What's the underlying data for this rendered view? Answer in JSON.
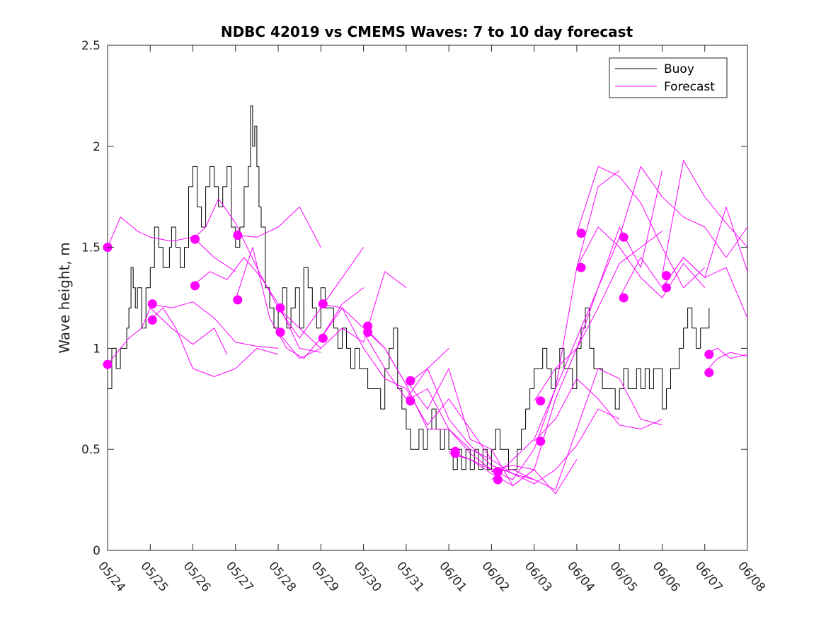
{
  "chart_data": {
    "type": "line",
    "title": "NDBC 42019 vs CMEMS Waves: 7 to 10 day forecast",
    "xlabel": "",
    "ylabel": "Wave height, m",
    "ylim": [
      0,
      2.5
    ],
    "yticks": [
      0,
      0.5,
      1,
      1.5,
      2,
      2.5
    ],
    "ytick_labels": [
      "0",
      "0.5",
      "1",
      "1.5",
      "2",
      "2.5"
    ],
    "xlim": [
      0,
      15
    ],
    "xticks": [
      0,
      1,
      2,
      3,
      4,
      5,
      6,
      7,
      8,
      9,
      10,
      11,
      12,
      13,
      14,
      15
    ],
    "xtick_labels": [
      "05/24",
      "05/25",
      "05/26",
      "05/27",
      "05/28",
      "05/29",
      "05/30",
      "05/31",
      "06/01",
      "06/02",
      "06/03",
      "06/04",
      "06/05",
      "06/06",
      "06/07",
      "06/08"
    ],
    "grid": false,
    "legend_position": "top-right",
    "colors": {
      "buoy": "#000000",
      "forecast": "#ff00ff"
    },
    "legend": [
      {
        "label": "Buoy",
        "color": "#000000"
      },
      {
        "label": "Forecast",
        "color": "#ff00ff"
      }
    ],
    "series": [
      {
        "name": "Buoy",
        "color": "#000000",
        "x": [
          0.0,
          0.1,
          0.2,
          0.3,
          0.45,
          0.5,
          0.55,
          0.6,
          0.65,
          0.7,
          0.8,
          0.9,
          1.0,
          1.1,
          1.2,
          1.3,
          1.45,
          1.5,
          1.6,
          1.7,
          1.8,
          1.9,
          2.0,
          2.1,
          2.2,
          2.3,
          2.4,
          2.5,
          2.6,
          2.7,
          2.8,
          2.9,
          3.0,
          3.1,
          3.2,
          3.3,
          3.35,
          3.4,
          3.45,
          3.5,
          3.55,
          3.6,
          3.7,
          3.8,
          3.9,
          4.0,
          4.1,
          4.2,
          4.3,
          4.4,
          4.5,
          4.6,
          4.7,
          4.8,
          4.9,
          5.0,
          5.1,
          5.2,
          5.3,
          5.4,
          5.5,
          5.6,
          5.7,
          5.8,
          5.9,
          6.0,
          6.1,
          6.2,
          6.3,
          6.4,
          6.5,
          6.6,
          6.7,
          6.8,
          6.9,
          7.0,
          7.1,
          7.2,
          7.3,
          7.4,
          7.5,
          7.6,
          7.7,
          7.8,
          7.9,
          8.0,
          8.1,
          8.2,
          8.3,
          8.4,
          8.5,
          8.6,
          8.7,
          8.8,
          8.9,
          9.0,
          9.1,
          9.2,
          9.3,
          9.4,
          9.5,
          9.6,
          9.7,
          9.8,
          9.9,
          10.0,
          10.1,
          10.2,
          10.3,
          10.4,
          10.5,
          10.6,
          10.7,
          10.8,
          10.9,
          11.0,
          11.1,
          11.2,
          11.3,
          11.4,
          11.5,
          11.6,
          11.7,
          11.8,
          11.9,
          12.0,
          12.1,
          12.2,
          12.3,
          12.4,
          12.5,
          12.6,
          12.7,
          12.8,
          12.9,
          13.0,
          13.1,
          13.2,
          13.3,
          13.4,
          13.5,
          13.6,
          13.7,
          13.8,
          13.9,
          14.0,
          14.1
        ],
        "values": [
          0.8,
          1.0,
          0.9,
          1.0,
          1.1,
          1.2,
          1.4,
          1.3,
          1.2,
          1.3,
          1.1,
          1.3,
          1.4,
          1.6,
          1.5,
          1.4,
          1.5,
          1.6,
          1.5,
          1.4,
          1.5,
          1.8,
          1.9,
          1.7,
          1.6,
          1.8,
          1.9,
          1.8,
          1.7,
          1.8,
          1.9,
          1.6,
          1.5,
          1.6,
          1.8,
          1.9,
          2.2,
          2.0,
          2.1,
          1.9,
          1.7,
          1.6,
          1.3,
          1.2,
          1.1,
          1.2,
          1.3,
          1.1,
          1.2,
          1.3,
          1.1,
          1.4,
          1.3,
          1.2,
          1.1,
          1.3,
          1.2,
          1.2,
          1.1,
          1.0,
          1.1,
          1.0,
          0.9,
          1.0,
          0.9,
          0.9,
          0.8,
          0.8,
          0.8,
          0.7,
          0.9,
          1.0,
          1.1,
          0.8,
          0.7,
          0.6,
          0.5,
          0.5,
          0.6,
          0.5,
          0.6,
          0.7,
          0.6,
          0.5,
          0.6,
          0.5,
          0.4,
          0.5,
          0.4,
          0.5,
          0.4,
          0.5,
          0.4,
          0.5,
          0.4,
          0.5,
          0.6,
          0.5,
          0.5,
          0.4,
          0.4,
          0.5,
          0.6,
          0.7,
          0.8,
          0.9,
          0.9,
          1.0,
          0.9,
          0.8,
          0.9,
          1.0,
          0.9,
          0.9,
          0.8,
          1.0,
          1.1,
          1.2,
          1.0,
          0.9,
          0.9,
          0.8,
          0.8,
          0.8,
          0.7,
          0.8,
          0.9,
          0.8,
          0.8,
          0.9,
          0.8,
          0.9,
          0.8,
          0.9,
          0.9,
          0.7,
          0.8,
          0.9,
          0.9,
          1.0,
          1.1,
          1.2,
          1.1,
          1.0,
          1.1,
          1.1,
          1.2
        ]
      },
      {
        "name": "Forecast",
        "color": "#ff00ff",
        "x": [
          0.0,
          0.3,
          0.7,
          1.0,
          1.5,
          2.0,
          2.5,
          3.0
        ],
        "values": [
          1.5,
          1.65,
          1.58,
          1.55,
          1.53,
          1.55,
          1.45,
          1.38
        ]
      },
      {
        "name": "",
        "color": "#ff00ff",
        "x": [
          0.0,
          0.3,
          0.5,
          0.8,
          1.0,
          1.5,
          2.0,
          2.5,
          2.8
        ],
        "values": [
          0.92,
          1.0,
          1.05,
          1.1,
          1.2,
          1.1,
          1.02,
          1.1,
          0.97
        ]
      },
      {
        "name": "",
        "color": "#ff00ff",
        "x": [
          1.0,
          1.5,
          2.0,
          2.5,
          3.0,
          3.5,
          4.0
        ],
        "values": [
          1.22,
          1.2,
          1.23,
          1.15,
          1.03,
          1.01,
          1.0
        ]
      },
      {
        "name": "",
        "color": "#ff00ff",
        "x": [
          1.0,
          1.3,
          1.6,
          2.0,
          2.5,
          3.0,
          3.5,
          4.0
        ],
        "values": [
          1.14,
          1.2,
          1.1,
          0.9,
          0.86,
          0.9,
          1.0,
          0.97
        ]
      },
      {
        "name": "",
        "color": "#ff00ff",
        "x": [
          2.0,
          2.3,
          2.6,
          3.0,
          3.5,
          4.0,
          4.5,
          5.0
        ],
        "values": [
          1.54,
          1.6,
          1.74,
          1.62,
          1.4,
          1.2,
          1.1,
          1.0
        ]
      },
      {
        "name": "",
        "color": "#ff00ff",
        "x": [
          2.0,
          2.4,
          2.8,
          3.2,
          3.6,
          4.0,
          4.5,
          5.0
        ],
        "values": [
          1.31,
          1.38,
          1.34,
          1.45,
          1.35,
          1.22,
          1.0,
          0.98
        ]
      },
      {
        "name": "",
        "color": "#ff00ff",
        "x": [
          3.0,
          3.5,
          4.0,
          4.5,
          5.0
        ],
        "values": [
          1.56,
          1.55,
          1.6,
          1.7,
          1.5
        ]
      },
      {
        "name": "",
        "color": "#ff00ff",
        "x": [
          3.0,
          3.4,
          3.8,
          4.2,
          4.6,
          5.0,
          5.5,
          6.0
        ],
        "values": [
          1.24,
          1.5,
          1.15,
          1.0,
          0.95,
          1.05,
          1.22,
          1.3
        ]
      },
      {
        "name": "",
        "color": "#ff00ff",
        "x": [
          4.0,
          4.5,
          5.0,
          5.5,
          6.0
        ],
        "values": [
          1.2,
          1.05,
          1.2,
          1.35,
          1.5
        ]
      },
      {
        "name": "",
        "color": "#ff00ff",
        "x": [
          4.0,
          4.5,
          5.0,
          5.5,
          6.0,
          6.5,
          7.0
        ],
        "values": [
          1.08,
          0.95,
          1.0,
          1.1,
          1.03,
          1.38,
          1.3
        ]
      },
      {
        "name": "",
        "color": "#ff00ff",
        "x": [
          5.0,
          5.5,
          6.0,
          6.5,
          7.0,
          7.5,
          8.0
        ],
        "values": [
          1.22,
          1.2,
          1.1,
          1.0,
          0.82,
          0.9,
          1.0
        ]
      },
      {
        "name": "",
        "color": "#ff00ff",
        "x": [
          5.0,
          5.5,
          6.0,
          6.5,
          7.0,
          7.5,
          8.0,
          8.5,
          9.0
        ],
        "values": [
          1.05,
          1.2,
          1.0,
          0.85,
          0.8,
          0.62,
          0.75,
          0.6,
          0.45
        ]
      },
      {
        "name": "",
        "color": "#ff00ff",
        "x": [
          6.0,
          6.5,
          7.0,
          7.5,
          8.0,
          8.5,
          9.0,
          9.5,
          10.0
        ],
        "values": [
          1.11,
          1.0,
          0.82,
          0.6,
          0.6,
          0.48,
          0.4,
          0.42,
          0.4
        ]
      },
      {
        "name": "",
        "color": "#ff00ff",
        "x": [
          6.0,
          6.5,
          7.0,
          7.5,
          8.0,
          8.5,
          9.0,
          9.5,
          10.0
        ],
        "values": [
          1.08,
          0.9,
          0.75,
          0.9,
          0.65,
          0.52,
          0.42,
          0.38,
          0.35
        ]
      },
      {
        "name": "",
        "color": "#ff00ff",
        "x": [
          7.0,
          7.5,
          8.0,
          8.5,
          9.0,
          9.5,
          10.0,
          10.5,
          11.0
        ],
        "values": [
          0.84,
          0.7,
          0.9,
          0.55,
          0.5,
          0.32,
          0.4,
          0.28,
          0.45
        ]
      },
      {
        "name": "",
        "color": "#ff00ff",
        "x": [
          7.0,
          7.5,
          8.0,
          8.5,
          9.0,
          9.5,
          10.0,
          10.5,
          11.0,
          11.5,
          12.0
        ],
        "values": [
          0.74,
          0.8,
          0.6,
          0.5,
          0.45,
          0.38,
          0.33,
          0.4,
          0.52,
          0.7,
          0.65
        ]
      },
      {
        "name": "",
        "color": "#ff00ff",
        "x": [
          8.0,
          8.5,
          9.0,
          9.5,
          10.0,
          10.5,
          11.0,
          11.5,
          12.0
        ],
        "values": [
          0.49,
          0.45,
          0.4,
          0.35,
          0.5,
          0.8,
          1.4,
          1.8,
          1.88
        ]
      },
      {
        "name": "",
        "color": "#ff00ff",
        "x": [
          8.0,
          8.5,
          9.0,
          9.5,
          10.0,
          10.5,
          11.0,
          11.5,
          12.0
        ],
        "values": [
          0.48,
          0.45,
          0.38,
          0.32,
          0.4,
          0.75,
          1.0,
          1.3,
          1.55
        ]
      },
      {
        "name": "",
        "color": "#ff00ff",
        "x": [
          9.0,
          9.5,
          10.0,
          10.5,
          11.0,
          11.5,
          12.0,
          12.5,
          13.0
        ],
        "values": [
          0.39,
          0.4,
          0.35,
          0.3,
          0.6,
          0.9,
          0.85,
          0.65,
          0.62
        ]
      },
      {
        "name": "",
        "color": "#ff00ff",
        "x": [
          9.0,
          9.5,
          10.0,
          10.5,
          11.0,
          11.5,
          12.0,
          12.5,
          13.0
        ],
        "values": [
          0.35,
          0.45,
          0.55,
          0.8,
          1.05,
          1.3,
          1.6,
          1.4,
          1.88
        ]
      },
      {
        "name": "",
        "color": "#ff00ff",
        "x": [
          10.0,
          10.5,
          11.0,
          11.5,
          12.0,
          12.5,
          13.0
        ],
        "values": [
          0.74,
          0.9,
          1.0,
          1.2,
          1.42,
          1.5,
          1.58
        ]
      },
      {
        "name": "",
        "color": "#ff00ff",
        "x": [
          10.0,
          10.5,
          11.0,
          11.5,
          12.0,
          12.5,
          13.0
        ],
        "values": [
          0.54,
          0.65,
          0.85,
          0.75,
          0.62,
          0.6,
          0.65
        ]
      },
      {
        "name": "",
        "color": "#ff00ff",
        "x": [
          11.0,
          11.5,
          12.0,
          12.5,
          13.0,
          13.5,
          14.0
        ],
        "values": [
          1.57,
          1.9,
          1.85,
          1.72,
          1.5,
          1.3,
          1.4
        ]
      },
      {
        "name": "",
        "color": "#ff00ff",
        "x": [
          11.0,
          11.5,
          12.0,
          12.5,
          13.0,
          13.5,
          14.0
        ],
        "values": [
          1.4,
          1.6,
          1.5,
          1.35,
          1.25,
          1.42,
          1.3
        ]
      },
      {
        "name": "",
        "color": "#ff00ff",
        "x": [
          12.0,
          12.5,
          13.0,
          13.5,
          14.0,
          14.5,
          15.0
        ],
        "values": [
          1.55,
          1.9,
          1.75,
          1.65,
          1.6,
          1.45,
          1.6
        ]
      },
      {
        "name": "",
        "color": "#ff00ff",
        "x": [
          12.0,
          12.5,
          13.0,
          13.5,
          14.0,
          14.5,
          15.0
        ],
        "values": [
          1.25,
          1.45,
          1.3,
          1.45,
          1.35,
          1.7,
          1.38
        ]
      },
      {
        "name": "",
        "color": "#ff00ff",
        "x": [
          13.0,
          13.5,
          14.0,
          14.5,
          15.0
        ],
        "values": [
          1.36,
          1.93,
          1.75,
          1.62,
          1.5
        ]
      },
      {
        "name": "",
        "color": "#ff00ff",
        "x": [
          13.0,
          13.5,
          14.0,
          14.5,
          15.0
        ],
        "values": [
          1.3,
          1.45,
          1.35,
          1.4,
          1.15
        ]
      },
      {
        "name": "",
        "color": "#ff00ff",
        "x": [
          14.0,
          14.3,
          14.6,
          15.0
        ],
        "values": [
          0.97,
          1.0,
          0.95,
          0.97
        ]
      },
      {
        "name": "",
        "color": "#ff00ff",
        "x": [
          14.0,
          14.3,
          14.6,
          15.0
        ],
        "values": [
          0.88,
          0.95,
          0.98,
          0.96
        ]
      }
    ],
    "forecast_start_points": {
      "x": [
        0.0,
        0.0,
        1.05,
        1.05,
        2.05,
        2.05,
        3.05,
        3.05,
        4.05,
        4.05,
        5.05,
        5.05,
        6.1,
        6.1,
        7.1,
        7.1,
        8.15,
        8.15,
        9.15,
        9.15,
        10.15,
        10.15,
        11.1,
        11.1,
        12.1,
        12.1,
        13.1,
        13.1,
        14.1,
        14.1
      ],
      "y": [
        1.5,
        0.92,
        1.22,
        1.14,
        1.54,
        1.31,
        1.56,
        1.24,
        1.2,
        1.08,
        1.22,
        1.05,
        1.11,
        1.08,
        0.84,
        0.74,
        0.49,
        0.48,
        0.39,
        0.35,
        0.74,
        0.54,
        1.57,
        1.4,
        1.55,
        1.25,
        1.36,
        1.3,
        0.97,
        0.88
      ]
    }
  }
}
